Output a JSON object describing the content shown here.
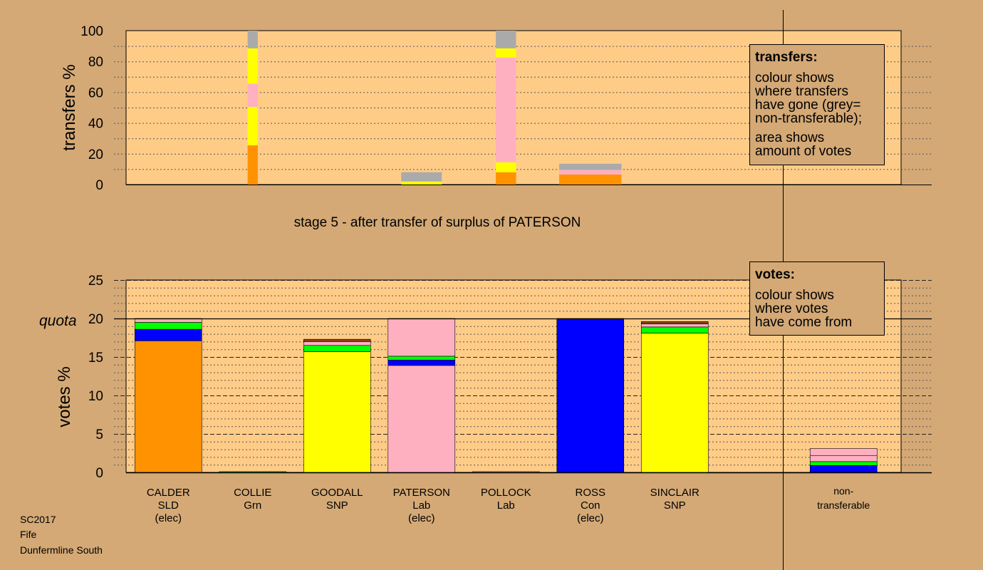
{
  "colors": {
    "background": "#d4a976",
    "plot_area": "#ffcc88",
    "orange": "#ff9200",
    "yellow": "#ffff00",
    "pink": "#ffb0c0",
    "green": "#00ff00",
    "blue": "#0000ff",
    "grey": "#aaaaaa",
    "brown": "#8b4513"
  },
  "footer": {
    "line1": "SC2017",
    "line2": "Fife",
    "line3": "Dunfermline South"
  },
  "stage_title": "stage 5 - after transfer of surplus of PATERSON",
  "quota_label": "quota",
  "legend_transfers": {
    "title": "transfers:",
    "line1": "colour shows",
    "line2": "where transfers",
    "line3": "have gone (grey=",
    "line4": "non-transferable);",
    "line5": "area shows",
    "line6": "amount of votes"
  },
  "legend_votes": {
    "title": "votes:",
    "line1": "colour shows",
    "line2": "where votes",
    "line3": "have come from"
  },
  "chart_data": [
    {
      "type": "bar",
      "ylabel": "transfers %",
      "ylim": [
        0,
        100
      ],
      "yticks": [
        0,
        20,
        40,
        60,
        80,
        100
      ],
      "grid": true,
      "segment_order": [
        "orange",
        "yellow",
        "pink",
        "yellow",
        "grey"
      ],
      "bars": [
        {
          "slot": 1.5,
          "width": 0.15,
          "segments": [
            {
              "color": "orange",
              "value": 25.5
            },
            {
              "color": "yellow",
              "value": 25
            },
            {
              "color": "pink",
              "value": 15
            },
            {
              "color": "yellow",
              "value": 23
            },
            {
              "color": "grey",
              "value": 11.5
            }
          ]
        },
        {
          "slot": 3.5,
          "width": 0.6,
          "segments": [
            {
              "color": "yellow",
              "value": 2
            },
            {
              "color": "grey",
              "value": 6
            }
          ]
        },
        {
          "slot": 4.5,
          "width": 0.3,
          "segments": [
            {
              "color": "orange",
              "value": 8
            },
            {
              "color": "yellow",
              "value": 6.5
            },
            {
              "color": "pink",
              "value": 68
            },
            {
              "color": "yellow",
              "value": 6
            },
            {
              "color": "grey",
              "value": 11.5
            }
          ]
        },
        {
          "slot": 5.5,
          "width": 0.92,
          "segments": [
            {
              "color": "orange",
              "value": 6.5
            },
            {
              "color": "pink",
              "value": 3
            },
            {
              "color": "grey",
              "value": 4
            }
          ]
        }
      ]
    },
    {
      "type": "bar",
      "ylabel": "votes %",
      "ylim": [
        0,
        25
      ],
      "yticks": [
        0,
        5,
        10,
        15,
        20,
        25
      ],
      "quota": 20,
      "grid": true,
      "categories": [
        {
          "name": "CALDER",
          "party": "SLD",
          "status": "(elec)"
        },
        {
          "name": "COLLIE",
          "party": "Grn",
          "status": ""
        },
        {
          "name": "GOODALL",
          "party": "SNP",
          "status": ""
        },
        {
          "name": "PATERSON",
          "party": "Lab",
          "status": "(elec)"
        },
        {
          "name": "POLLOCK",
          "party": "Lab",
          "status": ""
        },
        {
          "name": "ROSS",
          "party": "Con",
          "status": "(elec)"
        },
        {
          "name": "SINCLAIR",
          "party": "SNP",
          "status": ""
        },
        {
          "name": "",
          "party": "",
          "status": ""
        },
        {
          "name": "non-",
          "party": "transferable",
          "status": ""
        }
      ],
      "bars": [
        {
          "slot": 0.5,
          "segments": [
            {
              "color": "orange",
              "value": 17.1
            },
            {
              "color": "blue",
              "value": 1.5
            },
            {
              "color": "green",
              "value": 0.9
            },
            {
              "color": "pink",
              "value": 0.5
            }
          ]
        },
        {
          "slot": 1.5,
          "segments": [
            {
              "color": "green",
              "value": 0.1
            }
          ]
        },
        {
          "slot": 2.5,
          "segments": [
            {
              "color": "yellow",
              "value": 15.7
            },
            {
              "color": "green",
              "value": 0.8
            },
            {
              "color": "pink",
              "value": 0.5
            },
            {
              "color": "brown",
              "value": 0.3
            }
          ]
        },
        {
          "slot": 3.5,
          "segments": [
            {
              "color": "pink",
              "value": 13.9
            },
            {
              "color": "blue",
              "value": 0.7
            },
            {
              "color": "green",
              "value": 0.5
            },
            {
              "color": "pink",
              "value": 4.9
            }
          ]
        },
        {
          "slot": 4.5,
          "segments": [
            {
              "color": "pink",
              "value": 0.1
            }
          ]
        },
        {
          "slot": 5.5,
          "segments": [
            {
              "color": "blue",
              "value": 20
            }
          ]
        },
        {
          "slot": 6.5,
          "segments": [
            {
              "color": "yellow",
              "value": 18.1
            },
            {
              "color": "green",
              "value": 0.8
            },
            {
              "color": "pink",
              "value": 0.4
            },
            {
              "color": "brown",
              "value": 0.3
            }
          ]
        },
        {
          "slot": 8.5,
          "segments": [
            {
              "color": "blue",
              "value": 0.9
            },
            {
              "color": "green",
              "value": 0.5
            },
            {
              "color": "pink",
              "value": 0.8
            },
            {
              "color": "pink",
              "value": 0.9
            }
          ]
        }
      ]
    }
  ]
}
